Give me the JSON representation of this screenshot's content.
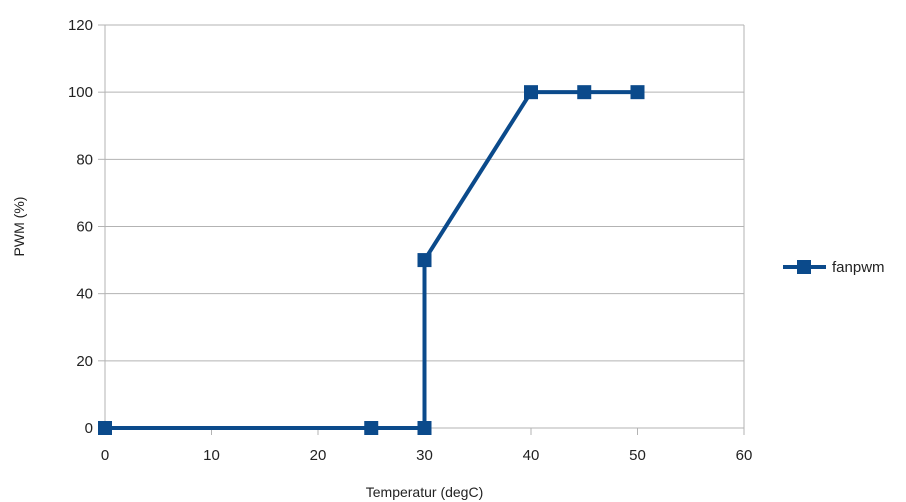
{
  "chart_data": {
    "type": "scatter",
    "title": "",
    "xlabel": "Temperatur (degC)",
    "ylabel": "PWM (%)",
    "xlim": [
      0,
      60
    ],
    "ylim": [
      0,
      120
    ],
    "xticks": [
      0,
      10,
      20,
      30,
      40,
      50,
      60
    ],
    "yticks": [
      0,
      20,
      40,
      60,
      80,
      100,
      120
    ],
    "xtick_labels": [
      "0",
      "10",
      "20",
      "30",
      "40",
      "50",
      "60"
    ],
    "ytick_labels": [
      "0",
      "20",
      "40",
      "60",
      "80",
      "100",
      "120"
    ],
    "grid": "horizontal",
    "legend_position": "right",
    "lines_connected": true,
    "marker": "square",
    "series": [
      {
        "name": "fanpwm",
        "color": "#0b4a8b",
        "x": [
          0,
          25,
          30,
          30,
          40,
          45,
          50
        ],
        "y": [
          0,
          0,
          0,
          50,
          100,
          100,
          100
        ]
      }
    ]
  }
}
